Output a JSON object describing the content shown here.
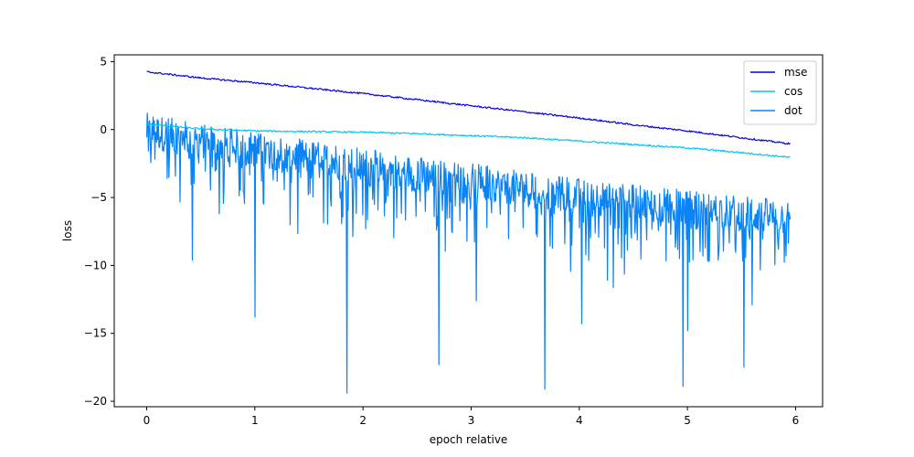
{
  "chart_data": {
    "type": "line",
    "title": "",
    "xlabel": "epoch relative",
    "ylabel": "loss",
    "xlim": [
      -0.3,
      6.25
    ],
    "ylim": [
      -20.4,
      5.5
    ],
    "xticks": [
      0,
      1,
      2,
      3,
      4,
      5,
      6
    ],
    "xtick_labels": [
      "0",
      "1",
      "2",
      "3",
      "4",
      "5",
      "6"
    ],
    "yticks": [
      5,
      0,
      -5,
      -10,
      -15,
      -20
    ],
    "ytick_labels": [
      "5",
      "0",
      "−5",
      "−10",
      "−15",
      "−20"
    ],
    "grid": false,
    "legend_position": "top-right",
    "series": [
      {
        "name": "mse",
        "color": "#0000ee",
        "x": [
          0,
          0.5,
          1,
          1.5,
          2,
          2.5,
          3,
          3.5,
          4,
          4.5,
          5,
          5.5,
          5.95
        ],
        "y": [
          4.25,
          3.8,
          3.45,
          3.05,
          2.65,
          2.2,
          1.75,
          1.3,
          0.85,
          0.35,
          -0.1,
          -0.6,
          -1.05
        ]
      },
      {
        "name": "cos",
        "color": "#00c8f0",
        "x": [
          0,
          0.5,
          1,
          1.5,
          2,
          2.5,
          3,
          3.5,
          4,
          4.5,
          5,
          5.5,
          5.95
        ],
        "y": [
          0.4,
          0.05,
          -0.1,
          -0.15,
          -0.2,
          -0.3,
          -0.45,
          -0.6,
          -0.85,
          -1.1,
          -1.35,
          -1.7,
          -2.05
        ]
      },
      {
        "name": "dot",
        "color": "#0a84f5",
        "x": [
          0,
          0.5,
          1,
          1.5,
          2,
          2.5,
          3,
          3.5,
          4,
          4.5,
          5,
          5.5,
          5.95
        ],
        "y": [
          -0.2,
          -1.0,
          -1.6,
          -2.2,
          -2.8,
          -3.4,
          -3.9,
          -4.5,
          -5.0,
          -5.5,
          -5.9,
          -6.3,
          -6.6
        ],
        "spikes": [
          {
            "x": 0.42,
            "y": -9.6
          },
          {
            "x": 1.0,
            "y": -13.8
          },
          {
            "x": 1.85,
            "y": -19.4
          },
          {
            "x": 2.7,
            "y": -17.3
          },
          {
            "x": 3.68,
            "y": -19.1
          },
          {
            "x": 4.02,
            "y": -14.3
          },
          {
            "x": 4.96,
            "y": -18.9
          },
          {
            "x": 5.0,
            "y": -14.8
          },
          {
            "x": 5.52,
            "y": -17.5
          },
          {
            "x": 5.6,
            "y": -12.9
          },
          {
            "x": 3.05,
            "y": -12.6
          }
        ]
      }
    ]
  }
}
